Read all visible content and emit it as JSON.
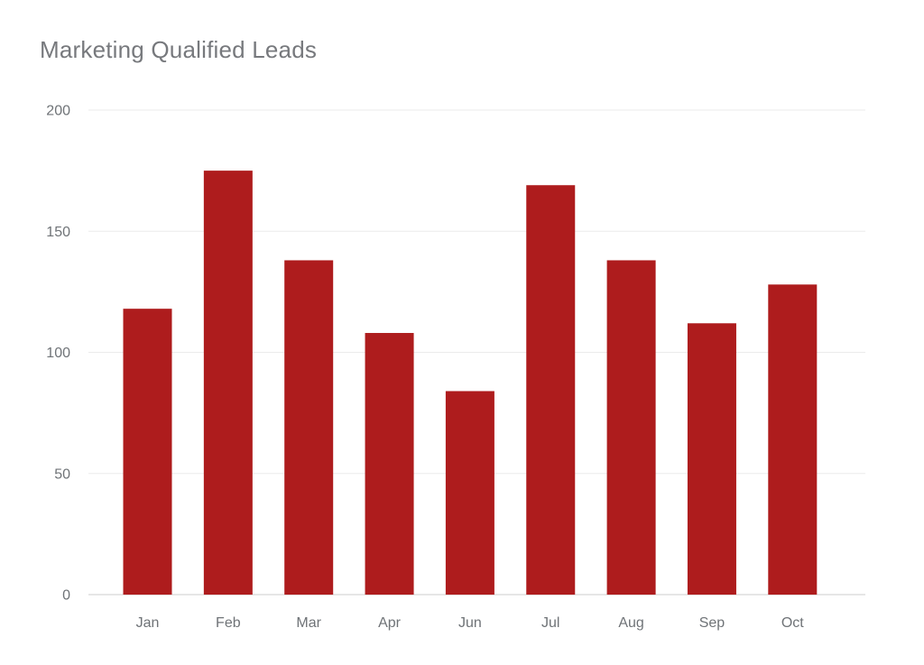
{
  "page": {
    "title": "Marketing Qualified Leads"
  },
  "colors": {
    "background": "#ffffff",
    "bar": "#AE1C1D",
    "gridline": "#ebebeb",
    "baseline": "#dedede",
    "tick_text": "#6f7377",
    "title_text": "#77797d"
  },
  "chart_data": {
    "type": "bar",
    "title": "Marketing Qualified Leads",
    "categories": [
      "Jan",
      "Feb",
      "Mar",
      "Apr",
      "Jun",
      "Jul",
      "Aug",
      "Sep",
      "Oct"
    ],
    "values": [
      118,
      175,
      138,
      108,
      84,
      169,
      138,
      112,
      128
    ],
    "xlabel": "",
    "ylabel": "",
    "ylim": [
      0,
      200
    ],
    "yticks": [
      0,
      50,
      100,
      150,
      200
    ],
    "grid": true,
    "legend": false,
    "bar_color": "#AE1C1D"
  }
}
